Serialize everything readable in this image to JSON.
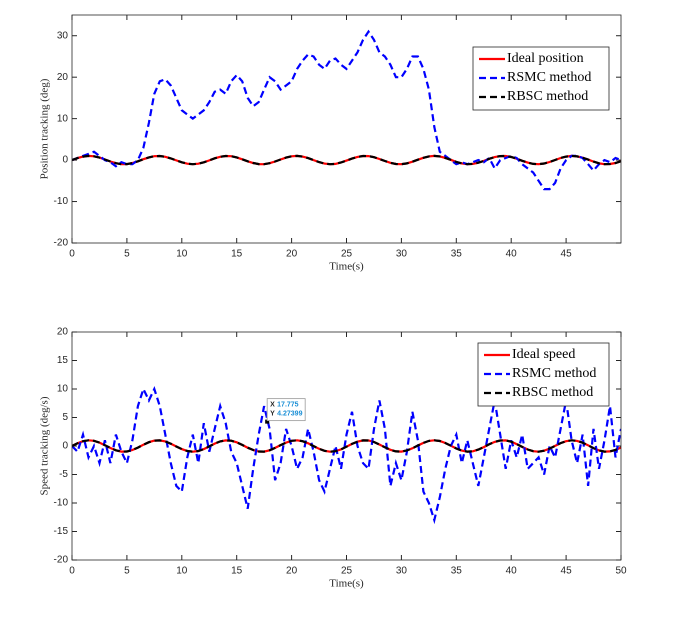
{
  "chart_data": [
    {
      "type": "line",
      "xlabel": "Time(s)",
      "ylabel": "Position tracking (deg)",
      "xlim": [
        0,
        50
      ],
      "xticks": [
        0,
        5,
        10,
        15,
        20,
        25,
        30,
        35,
        40,
        45
      ],
      "ylim": [
        -20,
        35
      ],
      "yticks": [
        -20,
        -10,
        0,
        10,
        20,
        30
      ],
      "legend": "upper right",
      "x": [
        0,
        0.5,
        1,
        1.5,
        2,
        2.5,
        3,
        3.5,
        4,
        4.5,
        5,
        5.5,
        6,
        6.5,
        7,
        7.5,
        8,
        8.5,
        9,
        9.5,
        10,
        10.5,
        11,
        11.5,
        12,
        12.5,
        13,
        13.5,
        14,
        14.5,
        15,
        15.5,
        16,
        16.5,
        17,
        17.5,
        18,
        18.5,
        19,
        19.5,
        20,
        20.5,
        21,
        21.5,
        22,
        22.5,
        23,
        23.5,
        24,
        24.5,
        25,
        25.5,
        26,
        26.5,
        27,
        27.5,
        28,
        28.5,
        29,
        29.5,
        30,
        30.5,
        31,
        31.5,
        32,
        32.5,
        33,
        33.5,
        34,
        34.5,
        35,
        35.5,
        36,
        36.5,
        37,
        37.5,
        38,
        38.5,
        39,
        39.5,
        40,
        40.5,
        41,
        41.5,
        42,
        42.5,
        43,
        43.5,
        44,
        44.5,
        45,
        45.5,
        46,
        46.5,
        47,
        47.5,
        48,
        48.5,
        49,
        49.5,
        50
      ],
      "series": [
        {
          "name": "Ideal position",
          "color": "#ff0000",
          "linestyle": "solid",
          "values": [
            0,
            0.48,
            0.84,
            1.0,
            0.91,
            0.6,
            0.14,
            -0.35,
            -0.76,
            -0.98,
            -0.96,
            -0.71,
            -0.28,
            0.22,
            0.66,
            0.94,
            0.99,
            0.8,
            0.41,
            -0.08,
            -0.54,
            -0.88,
            -1.0,
            -0.88,
            -0.54,
            -0.07,
            0.42,
            0.8,
            0.99,
            0.93,
            0.65,
            0.2,
            -0.29,
            -0.71,
            -0.96,
            -0.98,
            -0.75,
            -0.34,
            0.15,
            0.6,
            0.91,
            1.0,
            0.84,
            0.47,
            -0.01,
            -0.49,
            -0.85,
            -1.0,
            -0.91,
            -0.59,
            -0.13,
            0.36,
            0.76,
            0.98,
            0.96,
            0.7,
            0.27,
            -0.23,
            -0.66,
            -0.94,
            -0.99,
            -0.79,
            -0.4,
            0.09,
            0.55,
            0.89,
            1.0,
            0.88,
            0.53,
            0.06,
            -0.43,
            -0.81,
            -0.99,
            -0.93,
            -0.64,
            -0.19,
            0.3,
            0.72,
            0.96,
            0.98,
            0.75,
            0.33,
            -0.16,
            -0.61,
            -0.92,
            -1.0,
            -0.83,
            -0.46,
            0.02,
            0.5,
            0.85,
            1.0,
            0.9,
            0.58,
            0.12,
            -0.37,
            -0.77,
            -0.98,
            -0.95,
            -0.69,
            -0.26
          ]
        },
        {
          "name": "RSMC method",
          "color": "#0000ff",
          "linestyle": "dashed",
          "values": [
            0,
            0.5,
            1,
            1.5,
            2,
            1,
            0,
            -0.5,
            -1.5,
            -0.5,
            -1,
            -1,
            0,
            3,
            9,
            16,
            19,
            19.5,
            18,
            15,
            12,
            11,
            10,
            11,
            12,
            14,
            16.5,
            17,
            16,
            19,
            20.5,
            19,
            15,
            13,
            14,
            17,
            20,
            19,
            17,
            18,
            19,
            22,
            24,
            25.5,
            25,
            23,
            22,
            24,
            24.5,
            23,
            22,
            24,
            26,
            29,
            31,
            29,
            26,
            25,
            23,
            20,
            20,
            22,
            25,
            25,
            22,
            17,
            8,
            2,
            1,
            0,
            -1,
            -0.5,
            -1,
            -0.5,
            0,
            -0.5,
            0.5,
            -2,
            0,
            0.5,
            1,
            0.5,
            -1,
            -2,
            -3,
            -5,
            -7,
            -7,
            -5.5,
            -2,
            0,
            1,
            1,
            0.5,
            -1,
            -2.5,
            -1,
            0,
            -0.5,
            0.5,
            0
          ]
        },
        {
          "name": "RBSC method",
          "color": "#000000",
          "linestyle": "dashed",
          "values": [
            0,
            0.48,
            0.84,
            1.0,
            0.91,
            0.6,
            0.14,
            -0.35,
            -0.76,
            -0.98,
            -0.96,
            -0.71,
            -0.28,
            0.22,
            0.66,
            0.94,
            0.99,
            0.8,
            0.41,
            -0.08,
            -0.54,
            -0.88,
            -1.0,
            -0.88,
            -0.54,
            -0.07,
            0.42,
            0.8,
            0.99,
            0.93,
            0.65,
            0.2,
            -0.29,
            -0.71,
            -0.96,
            -0.98,
            -0.75,
            -0.34,
            0.15,
            0.6,
            0.91,
            1.0,
            0.84,
            0.47,
            -0.01,
            -0.49,
            -0.85,
            -1.0,
            -0.91,
            -0.59,
            -0.13,
            0.36,
            0.76,
            0.98,
            0.96,
            0.7,
            0.27,
            -0.23,
            -0.66,
            -0.94,
            -0.99,
            -0.79,
            -0.4,
            0.09,
            0.55,
            0.89,
            1.0,
            0.88,
            0.53,
            0.06,
            -0.43,
            -0.81,
            -0.99,
            -0.93,
            -0.64,
            -0.19,
            0.3,
            0.72,
            0.96,
            0.98,
            0.75,
            0.33,
            -0.16,
            -0.61,
            -0.92,
            -1.0,
            -0.83,
            -0.46,
            0.02,
            0.5,
            0.85,
            1.0,
            0.9,
            0.58,
            0.12,
            -0.37,
            -0.77,
            -0.98,
            -0.95,
            -0.69,
            -0.26
          ]
        }
      ]
    },
    {
      "type": "line",
      "xlabel": "Time(s)",
      "ylabel": "Speed tracking (deg/s)",
      "xlim": [
        0,
        50
      ],
      "xticks": [
        0,
        5,
        10,
        15,
        20,
        25,
        30,
        35,
        40,
        45,
        50
      ],
      "ylim": [
        -20,
        20
      ],
      "yticks": [
        -20,
        -15,
        -10,
        -5,
        0,
        5,
        10,
        15,
        20
      ],
      "legend": "upper right",
      "x": [
        0,
        0.5,
        1,
        1.5,
        2,
        2.5,
        3,
        3.5,
        4,
        4.5,
        5,
        5.5,
        6,
        6.5,
        7,
        7.5,
        8,
        8.5,
        9,
        9.5,
        10,
        10.5,
        11,
        11.5,
        12,
        12.5,
        13,
        13.5,
        14,
        14.5,
        15,
        15.5,
        16,
        16.5,
        17,
        17.5,
        18,
        18.5,
        19,
        19.5,
        20,
        20.5,
        21,
        21.5,
        22,
        22.5,
        23,
        23.5,
        24,
        24.5,
        25,
        25.5,
        26,
        26.5,
        27,
        27.5,
        28,
        28.5,
        29,
        29.5,
        30,
        30.5,
        31,
        31.5,
        32,
        32.5,
        33,
        33.5,
        34,
        34.5,
        35,
        35.5,
        36,
        36.5,
        37,
        37.5,
        38,
        38.5,
        39,
        39.5,
        40,
        40.5,
        41,
        41.5,
        42,
        42.5,
        43,
        43.5,
        44,
        44.5,
        45,
        45.5,
        46,
        46.5,
        47,
        47.5,
        48,
        48.5,
        49,
        49.5,
        50
      ],
      "series": [
        {
          "name": "Ideal speed",
          "color": "#ff0000",
          "linestyle": "solid",
          "values": [
            0,
            0.48,
            0.84,
            1.0,
            0.91,
            0.6,
            0.14,
            -0.35,
            -0.76,
            -0.98,
            -0.96,
            -0.71,
            -0.28,
            0.22,
            0.66,
            0.94,
            0.99,
            0.8,
            0.41,
            -0.08,
            -0.54,
            -0.88,
            -1.0,
            -0.88,
            -0.54,
            -0.07,
            0.42,
            0.8,
            0.99,
            0.93,
            0.65,
            0.2,
            -0.29,
            -0.71,
            -0.96,
            -0.98,
            -0.75,
            -0.34,
            0.15,
            0.6,
            0.91,
            1.0,
            0.84,
            0.47,
            -0.01,
            -0.49,
            -0.85,
            -1.0,
            -0.91,
            -0.59,
            -0.13,
            0.36,
            0.76,
            0.98,
            0.96,
            0.7,
            0.27,
            -0.23,
            -0.66,
            -0.94,
            -0.99,
            -0.79,
            -0.4,
            0.09,
            0.55,
            0.89,
            1.0,
            0.88,
            0.53,
            0.06,
            -0.43,
            -0.81,
            -0.99,
            -0.93,
            -0.64,
            -0.19,
            0.3,
            0.72,
            0.96,
            0.98,
            0.75,
            0.33,
            -0.16,
            -0.61,
            -0.92,
            -1.0,
            -0.83,
            -0.46,
            0.02,
            0.5,
            0.85,
            1.0,
            0.9,
            0.58,
            0.12,
            -0.37,
            -0.77,
            -0.98,
            -0.95,
            -0.69,
            -0.26
          ]
        },
        {
          "name": "RSMC method",
          "color": "#0000ff",
          "linestyle": "dashed",
          "values": [
            0,
            -1,
            2,
            -2,
            0,
            -3,
            1,
            -3,
            2,
            -1,
            -3,
            1,
            7,
            10,
            8,
            10,
            7,
            2,
            -3,
            -7,
            -8,
            -2,
            2,
            -3,
            4,
            -1,
            3,
            7,
            4,
            -1,
            -3,
            -7,
            -11,
            -4,
            2,
            7,
            3,
            -6,
            -3,
            3,
            0,
            -4,
            -2,
            3,
            -1,
            -6,
            -8,
            -4,
            0,
            -4,
            2,
            6,
            0,
            -3,
            -4,
            3,
            8,
            3,
            -7,
            -3,
            -6,
            -1,
            6,
            1,
            -8,
            -10,
            -13,
            -9,
            -4,
            0,
            2,
            -3,
            1,
            -3,
            -7,
            -2,
            3,
            8,
            2,
            -4,
            1,
            -2,
            2,
            -4,
            -3,
            -2,
            -5,
            0,
            -2,
            3,
            8,
            1,
            -3,
            2,
            -7,
            3,
            -4,
            1,
            7,
            -2,
            3
          ]
        },
        {
          "name": "RBSC method",
          "color": "#000000",
          "linestyle": "dashed",
          "values": [
            0,
            0.48,
            0.84,
            1.0,
            0.91,
            0.6,
            0.14,
            -0.35,
            -0.76,
            -0.98,
            -0.96,
            -0.71,
            -0.28,
            0.22,
            0.66,
            0.94,
            0.99,
            0.8,
            0.41,
            -0.08,
            -0.54,
            -0.88,
            -1.0,
            -0.88,
            -0.54,
            -0.07,
            0.42,
            0.8,
            0.99,
            0.93,
            0.65,
            0.2,
            -0.29,
            -0.71,
            -0.96,
            -0.98,
            -0.75,
            -0.34,
            0.15,
            0.6,
            0.91,
            1.0,
            0.84,
            0.47,
            -0.01,
            -0.49,
            -0.85,
            -1.0,
            -0.91,
            -0.59,
            -0.13,
            0.36,
            0.76,
            0.98,
            0.96,
            0.7,
            0.27,
            -0.23,
            -0.66,
            -0.94,
            -0.99,
            -0.79,
            -0.4,
            0.09,
            0.55,
            0.89,
            1.0,
            0.88,
            0.53,
            0.06,
            -0.43,
            -0.81,
            -0.99,
            -0.93,
            -0.64,
            -0.19,
            0.3,
            0.72,
            0.96,
            0.98,
            0.75,
            0.33,
            -0.16,
            -0.61,
            -0.92,
            -1.0,
            -0.83,
            -0.46,
            0.02,
            0.5,
            0.85,
            1.0,
            0.9,
            0.58,
            0.12,
            -0.37,
            -0.77,
            -0.98,
            -0.95,
            -0.69,
            -0.26
          ]
        }
      ],
      "datatip": {
        "x_label": "X",
        "x": 17.775,
        "y_label": "Y",
        "y": 4.27399
      }
    }
  ]
}
